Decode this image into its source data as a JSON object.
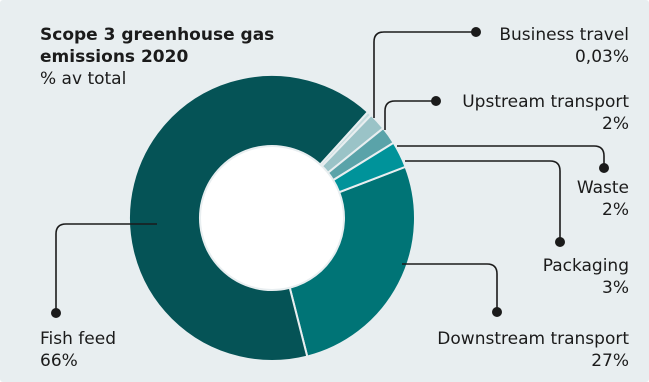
{
  "chart_data": {
    "type": "pie",
    "donut": true,
    "title": "Scope 3 greenhouse gas emissions 2020",
    "title_lines": [
      "Scope 3 greenhouse gas",
      "emissions 2020"
    ],
    "subtitle": "% av total",
    "slices": [
      {
        "name": "Fish feed",
        "value_label": "66%",
        "value": 66,
        "color": "#055356"
      },
      {
        "name": "Downstream transport",
        "value_label": "27%",
        "value": 27,
        "color": "#007476"
      },
      {
        "name": "Packaging",
        "value_label": "3%",
        "value": 3,
        "color": "#00939a"
      },
      {
        "name": "Waste",
        "value_label": "2%",
        "value": 2,
        "color": "#5aa3a9"
      },
      {
        "name": "Upstream transport",
        "value_label": "2%",
        "value": 2,
        "color": "#9ac3c7"
      },
      {
        "name": "Business travel",
        "value_label": "0,03%",
        "value": 0.03,
        "color": "#c6dcde"
      }
    ],
    "legend": "none"
  },
  "colors": {
    "background": "#e8eef0",
    "leader_line": "#1b1b1b",
    "separator": "#e8eef0"
  }
}
